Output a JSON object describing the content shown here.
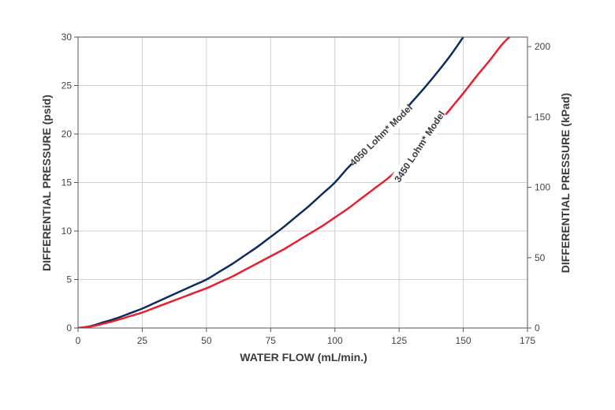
{
  "chart_data": {
    "type": "line",
    "title": "",
    "xlabel": "WATER FLOW (mL/min.)",
    "ylabel_left": "DIFFERENTIAL PRESSURE (psid)",
    "ylabel_right": "DIFFERENTIAL PRESSURE (kPad)",
    "xlim": [
      0,
      175
    ],
    "ylim_left": [
      0,
      30
    ],
    "ylim_right": [
      0,
      206.8
    ],
    "x_ticks": [
      0,
      25,
      50,
      75,
      100,
      125,
      150,
      175
    ],
    "y_ticks_left": [
      0,
      5,
      10,
      15,
      20,
      25,
      30
    ],
    "y_ticks_right": [
      0,
      50,
      100,
      150,
      200
    ],
    "grid": true,
    "legend": "none",
    "series": [
      {
        "name": "4050 Lohm* Model",
        "color": "#0d2b5e",
        "x": [
          0,
          5,
          10,
          15,
          20,
          25,
          30,
          35,
          40,
          45,
          50,
          55,
          60,
          65,
          70,
          75,
          80,
          85,
          90,
          95,
          100,
          105,
          110,
          115,
          120,
          125,
          130,
          135,
          140,
          145,
          150
        ],
        "y": [
          0,
          0.2,
          0.6,
          1.0,
          1.5,
          2.0,
          2.6,
          3.2,
          3.8,
          4.4,
          5.0,
          5.8,
          6.6,
          7.5,
          8.4,
          9.4,
          10.4,
          11.5,
          12.6,
          13.8,
          15.0,
          16.5,
          17.8,
          19.1,
          20.4,
          21.8,
          23.3,
          24.8,
          26.4,
          28.1,
          30.0
        ]
      },
      {
        "name": "3450 Lohm* Model",
        "color": "#e8202e",
        "x": [
          0,
          5,
          10,
          15,
          20,
          25,
          30,
          35,
          40,
          45,
          50,
          55,
          60,
          65,
          70,
          75,
          80,
          85,
          90,
          95,
          100,
          105,
          110,
          115,
          120,
          125,
          130,
          135,
          140,
          145,
          150,
          155,
          160,
          165,
          168
        ],
        "y": [
          0,
          0.15,
          0.45,
          0.8,
          1.2,
          1.6,
          2.1,
          2.6,
          3.1,
          3.6,
          4.1,
          4.7,
          5.3,
          6.0,
          6.7,
          7.4,
          8.1,
          8.9,
          9.7,
          10.5,
          11.4,
          12.3,
          13.3,
          14.3,
          15.3,
          16.4,
          17.5,
          19.5,
          21.0,
          22.6,
          24.2,
          25.9,
          27.5,
          29.2,
          30.0
        ]
      }
    ],
    "annotations": [
      {
        "text": "4050 Lohm* Model",
        "series": 0
      },
      {
        "text": "3450 Lohm* Model",
        "series": 1
      }
    ]
  }
}
